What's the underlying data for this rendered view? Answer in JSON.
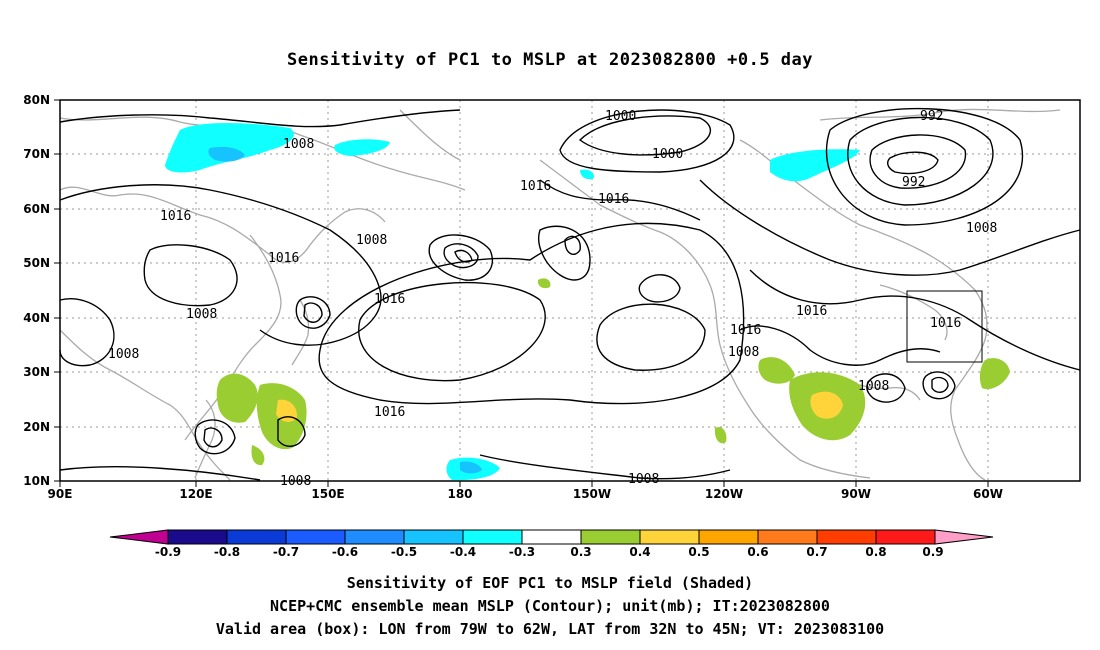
{
  "title": "Sensitivity of PC1 to MSLP at 2023082800 +0.5 day",
  "lat_ticks": [
    "80N",
    "70N",
    "60N",
    "50N",
    "40N",
    "30N",
    "20N",
    "10N"
  ],
  "lon_ticks": [
    "90E",
    "120E",
    "150E",
    "180",
    "150W",
    "120W",
    "90W",
    "60W"
  ],
  "contour_labels": [
    "1008",
    "1000",
    "1000",
    "992",
    "1008",
    "1016",
    "1016",
    "1016",
    "1008",
    "1016",
    "1016",
    "1008",
    "1016",
    "1016",
    "1008",
    "1016",
    "1008",
    "1008",
    "1016",
    "1008",
    "1008"
  ],
  "colorbar": {
    "labels": [
      "-0.9",
      "-0.8",
      "-0.7",
      "-0.6",
      "-0.5",
      "-0.4",
      "-0.3",
      "0.3",
      "0.4",
      "0.5",
      "0.6",
      "0.7",
      "0.8",
      "0.9"
    ],
    "colors": [
      "#1a0a8c",
      "#0a3bd6",
      "#1a5cff",
      "#1f8cff",
      "#16c3ff",
      "#10ffff",
      "#ffffff",
      "#9acd32",
      "#ffd43b",
      "#ffa500",
      "#ff7a1a",
      "#ff3d00",
      "#ff1a1a"
    ],
    "left_tri": "#c00090",
    "right_tri": "#ff9ec6"
  },
  "caption": {
    "line1": "Sensitivity of EOF PC1 to MSLP field (Shaded)",
    "line2": "NCEP+CMC ensemble mean MSLP (Contour); unit(mb); IT:2023082800",
    "line3": "Valid area (box): LON from 79W to 62W, LAT from 32N to 45N; VT: 2023083100"
  }
}
